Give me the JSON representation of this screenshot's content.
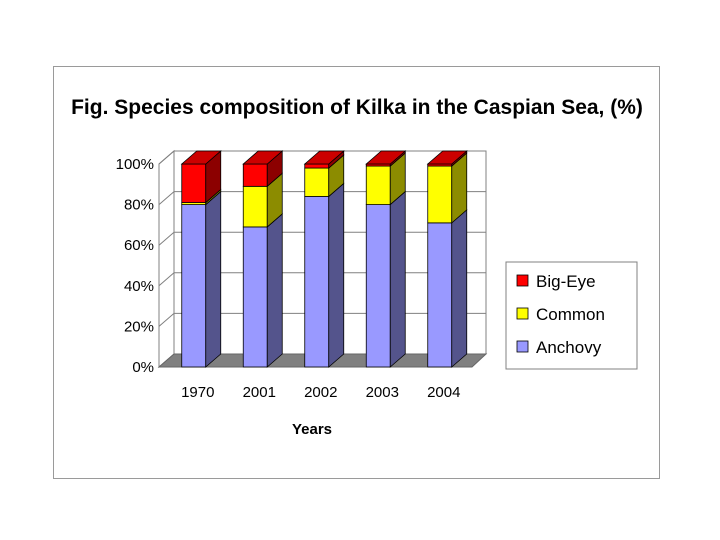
{
  "chart_data": {
    "type": "bar",
    "stacked": true,
    "percent": true,
    "three_d": true,
    "title": "Fig. Species composition of Kilka in the Caspian Sea, (%)",
    "xlabel": "Years",
    "ylabel": "",
    "categories": [
      "1970",
      "2001",
      "2002",
      "2003",
      "2004"
    ],
    "ylim": [
      0,
      100
    ],
    "y_ticks": [
      "0%",
      "20%",
      "40%",
      "60%",
      "80%",
      "100%"
    ],
    "y_tick_values": [
      0,
      20,
      40,
      60,
      80,
      100
    ],
    "series": [
      {
        "name": "Anchovy",
        "color": "#9999ff",
        "values": [
          80,
          69,
          84,
          80,
          71
        ]
      },
      {
        "name": "Common",
        "color": "#ffff00",
        "values": [
          1,
          20,
          14,
          19,
          28
        ]
      },
      {
        "name": "Big-Eye",
        "color": "#ff0000",
        "values": [
          19,
          11,
          2,
          1,
          1
        ]
      }
    ],
    "legend_order": [
      "Big-Eye",
      "Common",
      "Anchovy"
    ],
    "legend_position": "right",
    "floor_color": "#808080",
    "gridlines": true
  }
}
